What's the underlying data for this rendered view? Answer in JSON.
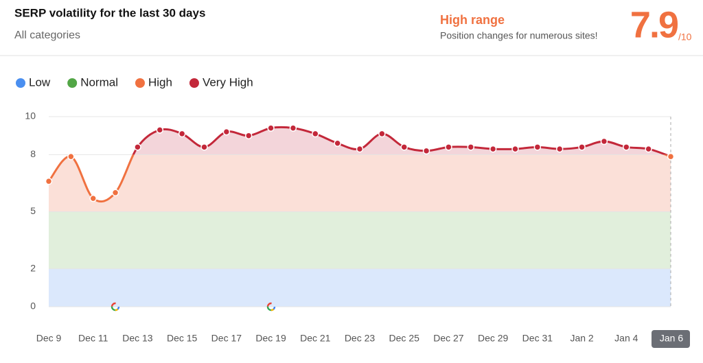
{
  "chart_data": {
    "type": "line",
    "title": "SERP volatility for the last 30 days",
    "subtitle": "All categories",
    "range_title": "High range",
    "range_text": "Position changes for numerous sites!",
    "score": 7.9,
    "score_max_label": "/10",
    "categories": [
      "Dec 9",
      null,
      "Dec 11",
      null,
      "Dec 13",
      null,
      "Dec 15",
      null,
      "Dec 17",
      null,
      "Dec 19",
      null,
      "Dec 21",
      null,
      "Dec 23",
      null,
      "Dec 25",
      null,
      "Dec 27",
      null,
      "Dec 29",
      null,
      "Dec 31",
      null,
      "Jan 2",
      null,
      "Jan 4",
      null,
      "Jan 6"
    ],
    "values": [
      6.6,
      7.9,
      5.7,
      6.0,
      8.4,
      9.3,
      9.1,
      8.4,
      9.2,
      9.0,
      9.4,
      9.4,
      9.1,
      8.6,
      8.3,
      9.1,
      8.4,
      8.2,
      8.4,
      8.4,
      8.3,
      8.3,
      8.4,
      8.3,
      8.4,
      8.7,
      8.4,
      8.3,
      7.9
    ],
    "bands": [
      {
        "name": "Low",
        "color": "#4a8ff0",
        "fill": "#dbe8fc",
        "from": 0,
        "to": 2
      },
      {
        "name": "Normal",
        "color": "#52a646",
        "fill": "#e1efdc",
        "from": 2,
        "to": 5
      },
      {
        "name": "High",
        "color": "#f07140",
        "fill": "#fbe0d8",
        "from": 5,
        "to": 8
      },
      {
        "name": "Very High",
        "color": "#c3283a",
        "fill": "#f3d5da",
        "from": 8,
        "to": 10
      }
    ],
    "ylim": [
      0,
      10
    ],
    "yticks": [
      0,
      2,
      5,
      8,
      10
    ],
    "grid": true
  }
}
